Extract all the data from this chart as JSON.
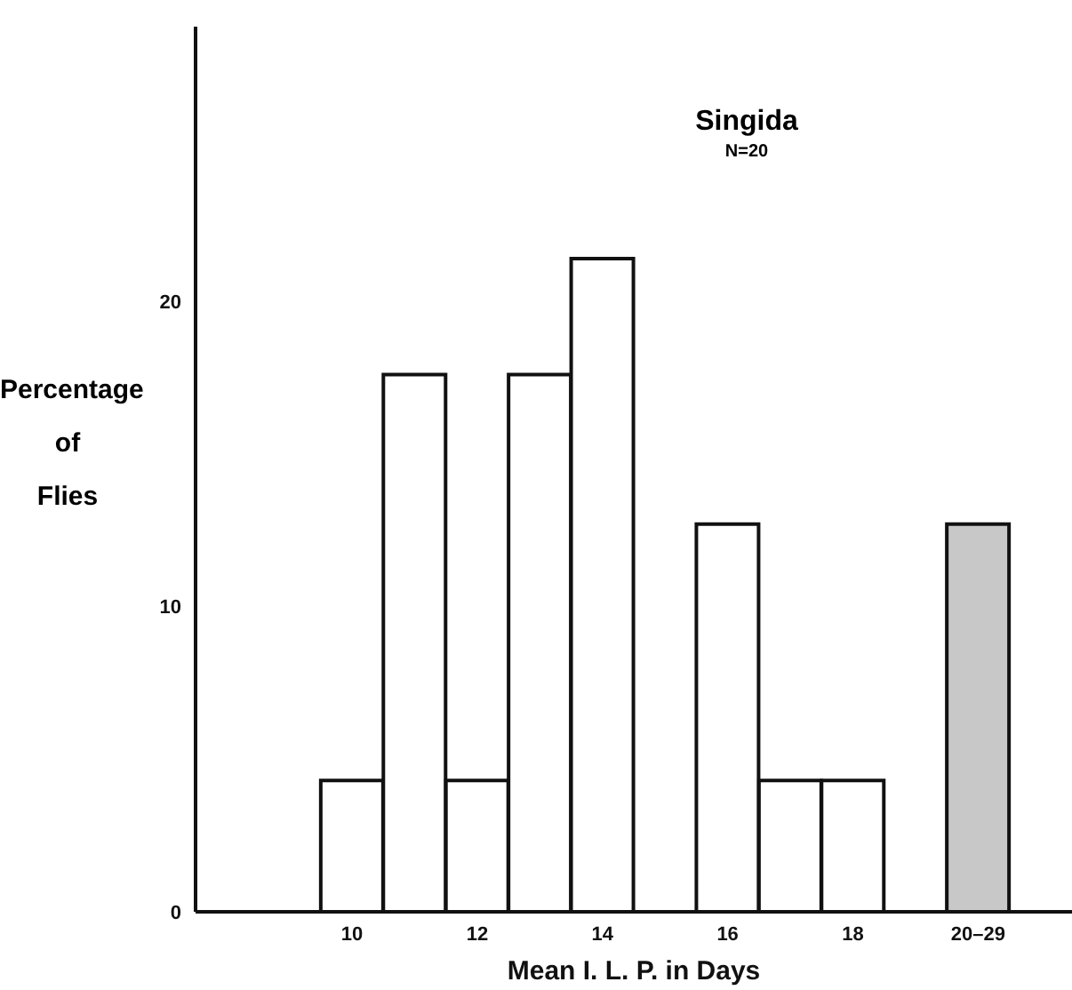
{
  "chart_data": {
    "type": "bar",
    "xlabel": "Mean I. L. P. in Days",
    "ylabel": "Percentage of Flies",
    "categories": [
      null,
      null,
      "10",
      null,
      "12",
      null,
      "14",
      null,
      "16",
      null,
      "18",
      null,
      "20–29",
      null
    ],
    "values": [
      null,
      null,
      4.3,
      17.6,
      4.3,
      17.6,
      21.4,
      null,
      12.7,
      4.3,
      4.3,
      null,
      12.7,
      null
    ],
    "colors": [
      "#ffffff",
      "#ffffff",
      "#ffffff",
      "#ffffff",
      "#ffffff",
      "#ffffff",
      "#ffffff",
      "#ffffff",
      "#ffffff",
      "#ffffff",
      "#ffffff",
      "#ffffff",
      "#c8c8c8",
      "#ffffff"
    ],
    "ylim": [
      0,
      29
    ],
    "yticks": [
      0,
      10,
      20
    ],
    "grid": false,
    "legend": false,
    "annotations": [
      "Singida",
      "N=20"
    ]
  }
}
